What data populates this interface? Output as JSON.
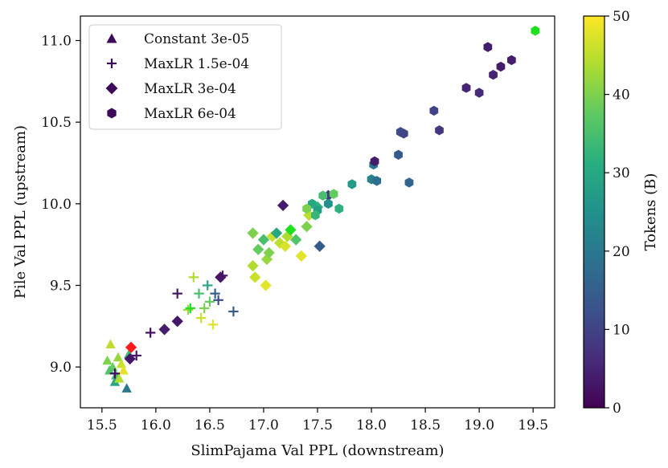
{
  "chart_data": {
    "type": "scatter",
    "xlabel": "SlimPajama Val PPL (downstream)",
    "ylabel": "Pile Val PPL (upstream)",
    "xlim": [
      15.3,
      19.7
    ],
    "ylim": [
      8.75,
      11.15
    ],
    "xticks": [
      "15.5",
      "16.0",
      "16.5",
      "17.0",
      "17.5",
      "18.0",
      "18.5",
      "19.0",
      "19.5"
    ],
    "yticks": [
      "9.0",
      "9.5",
      "10.0",
      "10.5",
      "11.0"
    ],
    "colorbar": {
      "label": "Tokens (B)",
      "min": 0,
      "max": 50,
      "ticks": [
        "0",
        "10",
        "20",
        "30",
        "40",
        "50"
      ],
      "colormap": "viridis"
    },
    "highlight_colors": {
      "green": "#1fe01f",
      "red": "#ff1a1a"
    },
    "series": [
      {
        "name": "Constant 3e-05",
        "marker": "triangle",
        "points": [
          {
            "x": 15.58,
            "y": 9.14,
            "tokens": 45
          },
          {
            "x": 15.55,
            "y": 9.04,
            "tokens": 40
          },
          {
            "x": 15.6,
            "y": 9.0,
            "tokens": 38
          },
          {
            "x": 15.63,
            "y": 8.95,
            "tokens": 35
          },
          {
            "x": 15.65,
            "y": 9.06,
            "tokens": 42
          },
          {
            "x": 15.68,
            "y": 9.02,
            "tokens": 46
          },
          {
            "x": 15.7,
            "y": 8.98,
            "tokens": 48
          },
          {
            "x": 15.62,
            "y": 8.91,
            "tokens": 30
          },
          {
            "x": 15.73,
            "y": 8.87,
            "tokens": 20
          },
          {
            "x": 15.57,
            "y": 8.98,
            "tokens": 36
          },
          {
            "x": 15.66,
            "y": 8.93,
            "tokens": 44
          },
          {
            "x": 15.75,
            "y": 9.08,
            "tokens": 34
          }
        ]
      },
      {
        "name": "MaxLR 1.5e-04",
        "marker": "plus",
        "points": [
          {
            "x": 15.62,
            "y": 8.96,
            "tokens": 2
          },
          {
            "x": 15.82,
            "y": 9.07,
            "tokens": 3
          },
          {
            "x": 15.95,
            "y": 9.21,
            "tokens": 2
          },
          {
            "x": 16.3,
            "y": 9.35,
            "tokens": 42
          },
          {
            "x": 16.35,
            "y": 9.55,
            "tokens": 44
          },
          {
            "x": 16.4,
            "y": 9.45,
            "tokens": 35
          },
          {
            "x": 16.42,
            "y": 9.3,
            "tokens": 46
          },
          {
            "x": 16.48,
            "y": 9.5,
            "tokens": 30
          },
          {
            "x": 16.5,
            "y": 9.4,
            "tokens": 38
          },
          {
            "x": 16.53,
            "y": 9.26,
            "tokens": 48
          },
          {
            "x": 16.55,
            "y": 9.45,
            "tokens": 15
          },
          {
            "x": 16.58,
            "y": 9.41,
            "tokens": 12
          },
          {
            "x": 16.62,
            "y": 9.56,
            "tokens": 4
          },
          {
            "x": 16.72,
            "y": 9.34,
            "tokens": 14
          },
          {
            "x": 16.2,
            "y": 9.45,
            "tokens": 3
          },
          {
            "x": 16.45,
            "y": 9.36,
            "tokens": 40
          },
          {
            "x": 16.32,
            "y": 9.36,
            "tokens": 50
          }
        ]
      },
      {
        "name": "MaxLR 3e-04",
        "marker": "diamond",
        "points": [
          {
            "x": 15.76,
            "y": 9.05,
            "tokens": 3
          },
          {
            "x": 15.77,
            "y": 9.12,
            "tokens": 50
          },
          {
            "x": 16.08,
            "y": 9.23,
            "tokens": 4
          },
          {
            "x": 16.2,
            "y": 9.28,
            "tokens": 3
          },
          {
            "x": 16.6,
            "y": 9.55,
            "tokens": 3
          },
          {
            "x": 16.9,
            "y": 9.82,
            "tokens": 40
          },
          {
            "x": 16.9,
            "y": 9.62,
            "tokens": 44
          },
          {
            "x": 16.92,
            "y": 9.55,
            "tokens": 46
          },
          {
            "x": 16.95,
            "y": 9.72,
            "tokens": 38
          },
          {
            "x": 17.0,
            "y": 9.78,
            "tokens": 35
          },
          {
            "x": 17.02,
            "y": 9.5,
            "tokens": 48
          },
          {
            "x": 17.03,
            "y": 9.66,
            "tokens": 42
          },
          {
            "x": 17.05,
            "y": 9.7,
            "tokens": 40
          },
          {
            "x": 17.08,
            "y": 9.8,
            "tokens": 46
          },
          {
            "x": 17.12,
            "y": 9.82,
            "tokens": 30
          },
          {
            "x": 17.15,
            "y": 9.76,
            "tokens": 45
          },
          {
            "x": 17.18,
            "y": 9.99,
            "tokens": 4
          },
          {
            "x": 17.2,
            "y": 9.74,
            "tokens": 47
          },
          {
            "x": 17.22,
            "y": 9.8,
            "tokens": 44
          },
          {
            "x": 17.25,
            "y": 9.84,
            "tokens": 50
          },
          {
            "x": 17.3,
            "y": 9.78,
            "tokens": 36
          },
          {
            "x": 17.35,
            "y": 9.68,
            "tokens": 48
          },
          {
            "x": 17.4,
            "y": 9.86,
            "tokens": 40
          },
          {
            "x": 17.52,
            "y": 9.74,
            "tokens": 14
          },
          {
            "x": 17.6,
            "y": 10.05,
            "tokens": 8
          },
          {
            "x": 17.5,
            "y": 9.98,
            "tokens": 32
          },
          {
            "x": 17.42,
            "y": 9.93,
            "tokens": 45
          }
        ]
      },
      {
        "name": "MaxLR 6e-04",
        "marker": "hexagon",
        "points": [
          {
            "x": 17.45,
            "y": 10.0,
            "tokens": 30
          },
          {
            "x": 17.5,
            "y": 9.96,
            "tokens": 28
          },
          {
            "x": 17.55,
            "y": 10.05,
            "tokens": 35
          },
          {
            "x": 17.6,
            "y": 10.0,
            "tokens": 25
          },
          {
            "x": 17.65,
            "y": 10.06,
            "tokens": 38
          },
          {
            "x": 17.7,
            "y": 9.97,
            "tokens": 32
          },
          {
            "x": 17.82,
            "y": 10.12,
            "tokens": 27
          },
          {
            "x": 18.0,
            "y": 10.15,
            "tokens": 22
          },
          {
            "x": 18.02,
            "y": 10.24,
            "tokens": 20
          },
          {
            "x": 18.03,
            "y": 10.26,
            "tokens": 4
          },
          {
            "x": 18.05,
            "y": 10.14,
            "tokens": 18
          },
          {
            "x": 18.25,
            "y": 10.3,
            "tokens": 14
          },
          {
            "x": 18.27,
            "y": 10.44,
            "tokens": 12
          },
          {
            "x": 18.3,
            "y": 10.43,
            "tokens": 10
          },
          {
            "x": 18.35,
            "y": 10.13,
            "tokens": 16
          },
          {
            "x": 18.58,
            "y": 10.57,
            "tokens": 10
          },
          {
            "x": 18.63,
            "y": 10.45,
            "tokens": 8
          },
          {
            "x": 18.88,
            "y": 10.71,
            "tokens": 5
          },
          {
            "x": 19.0,
            "y": 10.68,
            "tokens": 6
          },
          {
            "x": 19.08,
            "y": 10.96,
            "tokens": 4
          },
          {
            "x": 19.13,
            "y": 10.79,
            "tokens": 5
          },
          {
            "x": 19.2,
            "y": 10.84,
            "tokens": 4
          },
          {
            "x": 19.3,
            "y": 10.88,
            "tokens": 4
          },
          {
            "x": 19.52,
            "y": 11.06,
            "tokens": 50
          },
          {
            "x": 17.48,
            "y": 9.93,
            "tokens": 33
          },
          {
            "x": 17.4,
            "y": 9.97,
            "tokens": 40
          }
        ]
      }
    ]
  }
}
